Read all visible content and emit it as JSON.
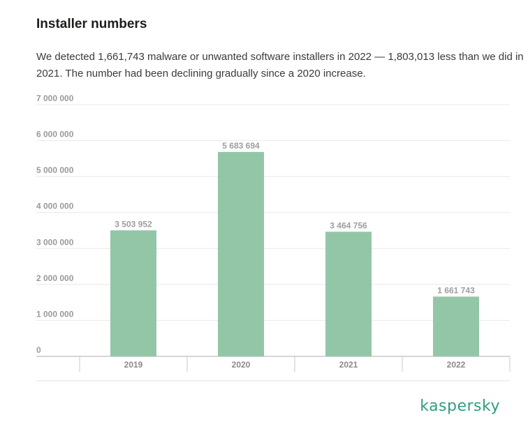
{
  "header": {
    "title": "Installer numbers",
    "description": "We detected 1,661,743 malware or unwanted software installers in 2022 — 1,803,013 less than we did in 2021. The number had been declining gradually since a 2020 increase."
  },
  "chart_data": {
    "type": "bar",
    "title": "",
    "xlabel": "",
    "ylabel": "",
    "categories": [
      "2019",
      "2020",
      "2021",
      "2022"
    ],
    "values": [
      3503952,
      5683694,
      3464756,
      1661743
    ],
    "data_labels": [
      "3 503 952",
      "5 683 694",
      "3 464 756",
      "1 661 743"
    ],
    "ylim": [
      0,
      7000000
    ],
    "yticks": [
      0,
      1000000,
      2000000,
      3000000,
      4000000,
      5000000,
      6000000,
      7000000
    ],
    "ytick_labels": [
      "0",
      "1 000 000",
      "2 000 000",
      "3 000 000",
      "4 000 000",
      "5 000 000",
      "6 000 000",
      "7 000 000"
    ],
    "grid": true,
    "bar_color": "#93c6a7"
  },
  "branding": {
    "logo_text": "kaspersky",
    "logo_color": "#2e9e83"
  }
}
